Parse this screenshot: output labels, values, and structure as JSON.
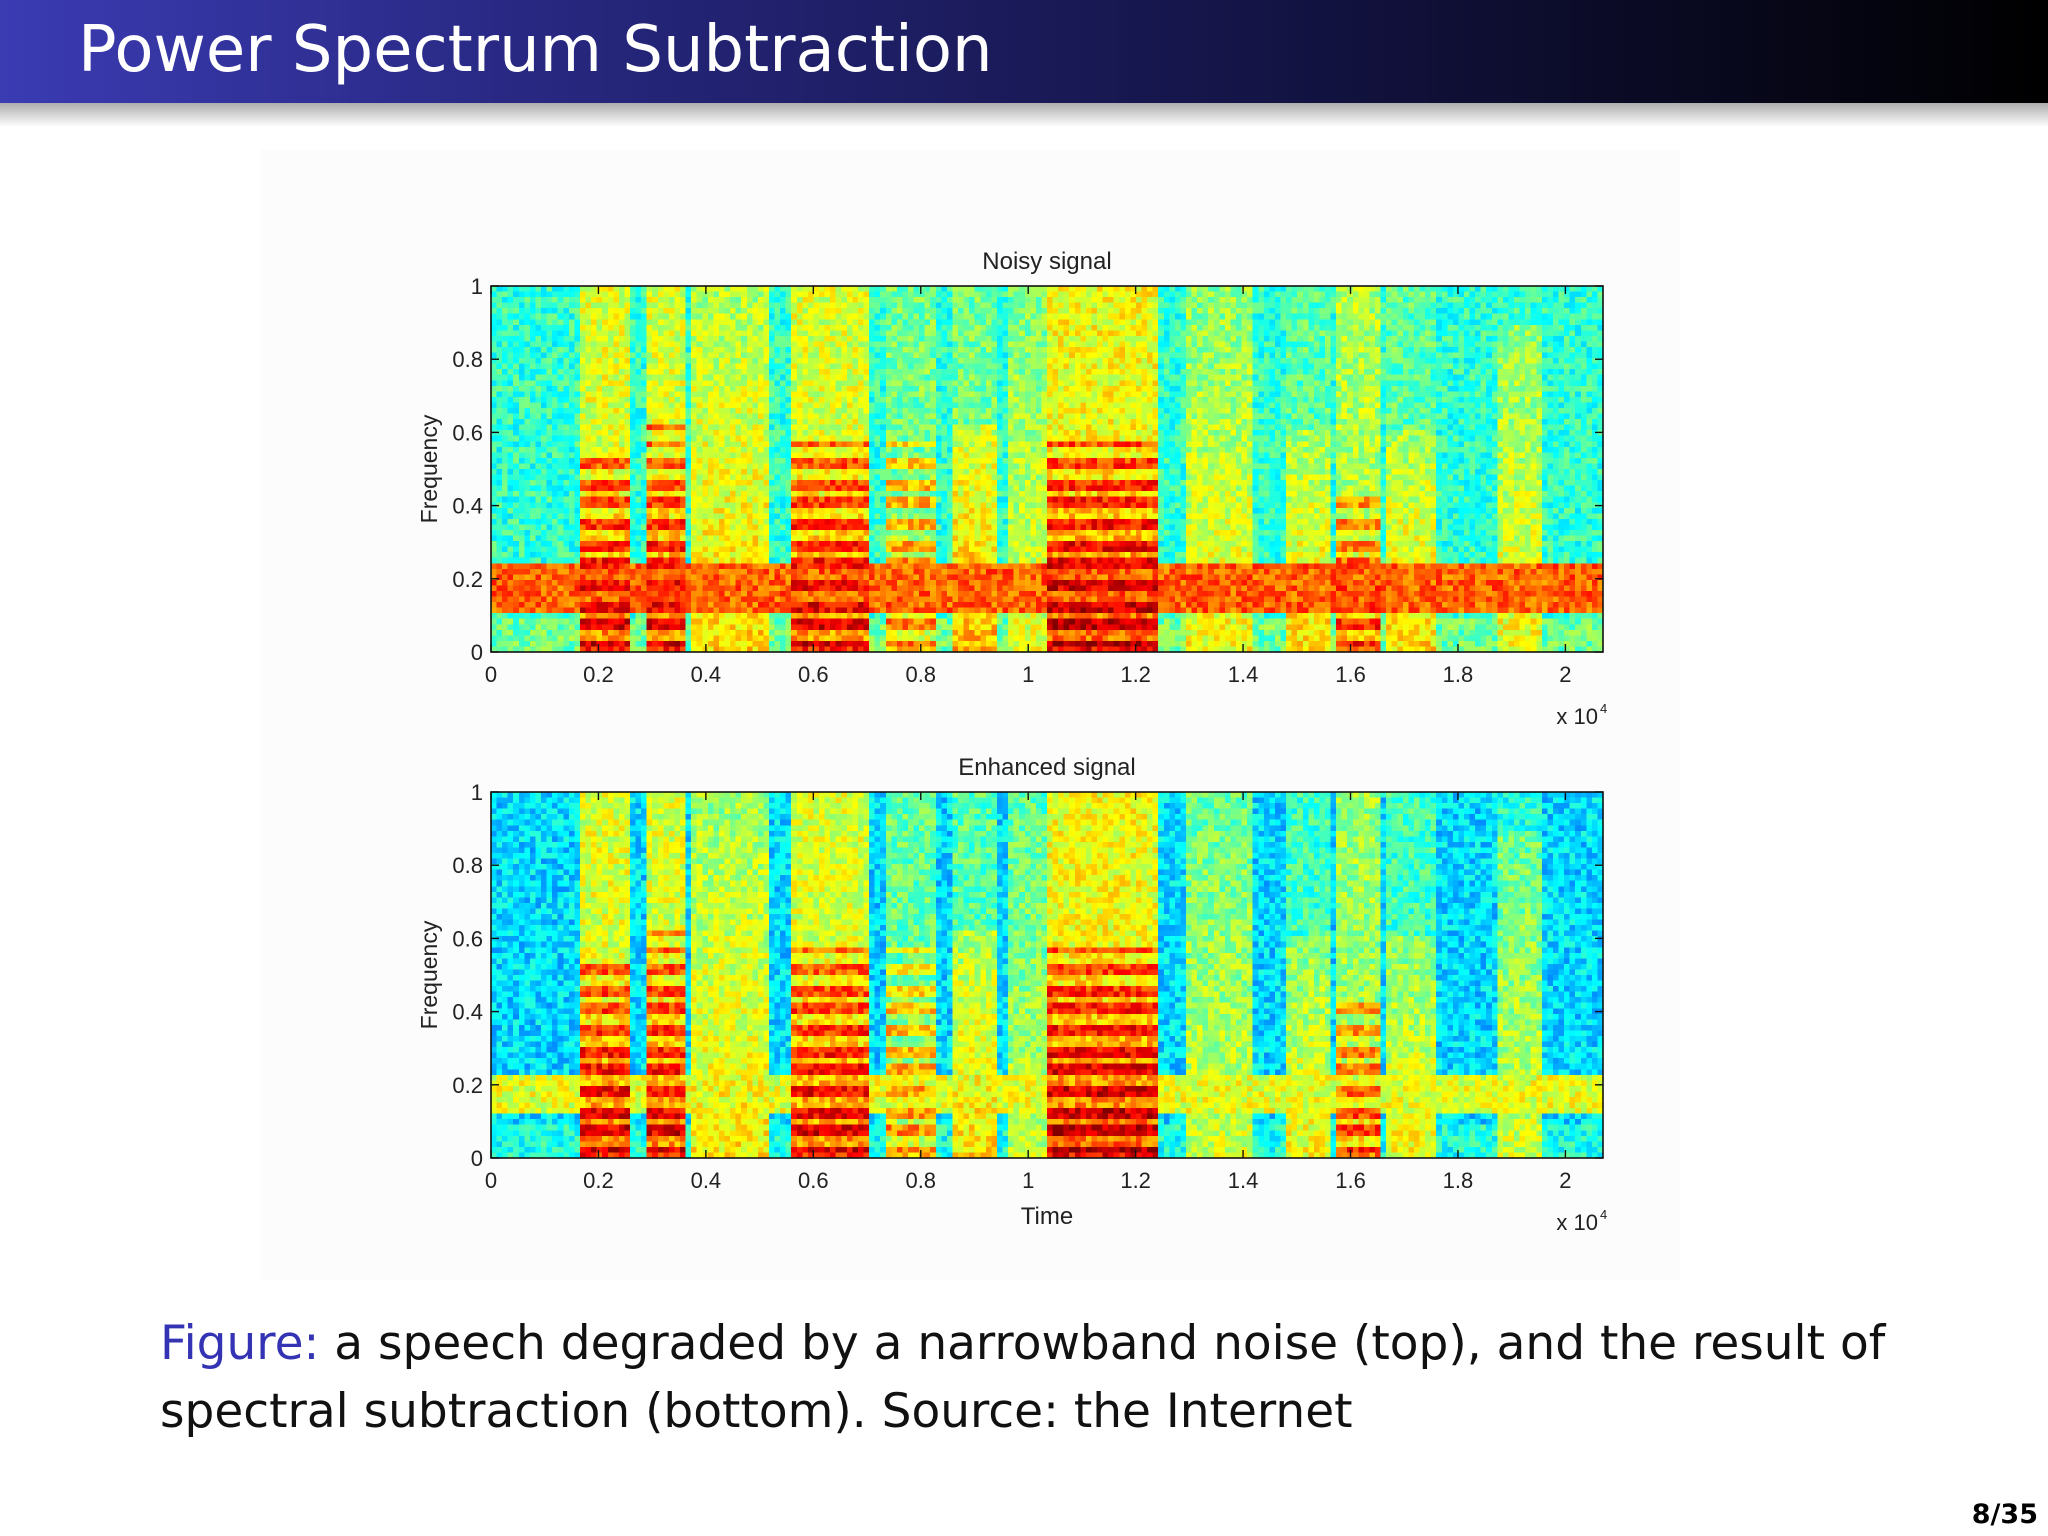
{
  "slide": {
    "title": "Power Spectrum Subtraction",
    "caption_label": "Figure:",
    "caption_text": "a speech degraded by a narrowband noise (top), and the result of spectral subtraction (bottom). Source: the Internet",
    "page_number": "8/35",
    "colors": {
      "title_bar_start": "#3b3bb3",
      "title_bar_end": "#000000",
      "caption_label": "#3333b3"
    }
  },
  "chart_data": [
    {
      "type": "heatmap",
      "title": "Noisy signal",
      "xlabel": "",
      "ylabel": "Frequency",
      "x_ticks": [
        0,
        0.2,
        0.4,
        0.6,
        0.8,
        1,
        1.2,
        1.4,
        1.6,
        1.8,
        2
      ],
      "x_tick_labels": [
        "0",
        "0.2",
        "0.4",
        "0.6",
        "0.8",
        "1",
        "1.2",
        "1.4",
        "1.6",
        "1.8",
        "2"
      ],
      "x_multiplier": "x 10",
      "x_multiplier_exp": "4",
      "y_ticks": [
        0,
        0.2,
        0.4,
        0.6,
        0.8,
        1
      ],
      "y_tick_labels": [
        "0",
        "0.2",
        "0.4",
        "0.6",
        "0.8",
        "1"
      ],
      "xlim": [
        0,
        2.07
      ],
      "ylim": [
        0,
        1
      ],
      "colormap": "jet",
      "noise_band": {
        "freq_low": 0.1,
        "freq_high": 0.24,
        "level": 0.78
      },
      "background_level": 0.42,
      "segments": [
        {
          "t0": 0.17,
          "t1": 0.26,
          "fmax": 0.55,
          "level": 0.85,
          "harmonics": true
        },
        {
          "t0": 0.29,
          "t1": 0.36,
          "fmax": 0.62,
          "level": 0.84,
          "harmonics": true
        },
        {
          "t0": 0.37,
          "t1": 0.52,
          "fmax": 1.0,
          "level": 0.66,
          "harmonics": false
        },
        {
          "t0": 0.56,
          "t1": 0.7,
          "fmax": 0.6,
          "level": 0.84,
          "harmonics": true
        },
        {
          "t0": 0.73,
          "t1": 0.83,
          "fmax": 0.58,
          "level": 0.7,
          "harmonics": true
        },
        {
          "t0": 0.86,
          "t1": 0.94,
          "fmax": 0.62,
          "level": 0.7,
          "harmonics": false
        },
        {
          "t0": 0.96,
          "t1": 1.03,
          "fmax": 1.0,
          "level": 0.6,
          "harmonics": false
        },
        {
          "t0": 1.04,
          "t1": 1.24,
          "fmax": 0.57,
          "level": 0.88,
          "harmonics": true
        },
        {
          "t0": 1.29,
          "t1": 1.42,
          "fmax": 1.0,
          "level": 0.62,
          "harmonics": false
        },
        {
          "t0": 1.48,
          "t1": 1.56,
          "fmax": 0.6,
          "level": 0.66,
          "harmonics": false
        },
        {
          "t0": 1.57,
          "t1": 1.66,
          "fmax": 0.44,
          "level": 0.78,
          "harmonics": true
        },
        {
          "t0": 1.67,
          "t1": 1.76,
          "fmax": 0.6,
          "level": 0.66,
          "harmonics": false
        },
        {
          "t0": 1.87,
          "t1": 1.96,
          "fmax": 0.9,
          "level": 0.62,
          "harmonics": false
        }
      ]
    },
    {
      "type": "heatmap",
      "title": "Enhanced signal",
      "xlabel": "Time",
      "ylabel": "Frequency",
      "x_ticks": [
        0,
        0.2,
        0.4,
        0.6,
        0.8,
        1,
        1.2,
        1.4,
        1.6,
        1.8,
        2
      ],
      "x_tick_labels": [
        "0",
        "0.2",
        "0.4",
        "0.6",
        "0.8",
        "1",
        "1.2",
        "1.4",
        "1.6",
        "1.8",
        "2"
      ],
      "x_multiplier": "x 10",
      "x_multiplier_exp": "4",
      "y_ticks": [
        0,
        0.2,
        0.4,
        0.6,
        0.8,
        1
      ],
      "y_tick_labels": [
        "0",
        "0.2",
        "0.4",
        "0.6",
        "0.8",
        "1"
      ],
      "xlim": [
        0,
        2.07
      ],
      "ylim": [
        0,
        1
      ],
      "colormap": "jet",
      "noise_band": {
        "freq_low": 0.12,
        "freq_high": 0.22,
        "level": 0.6
      },
      "background_level": 0.34,
      "segments": [
        {
          "t0": 0.17,
          "t1": 0.26,
          "fmax": 0.55,
          "level": 0.85,
          "harmonics": true
        },
        {
          "t0": 0.29,
          "t1": 0.36,
          "fmax": 0.62,
          "level": 0.84,
          "harmonics": true
        },
        {
          "t0": 0.37,
          "t1": 0.52,
          "fmax": 1.0,
          "level": 0.64,
          "harmonics": false
        },
        {
          "t0": 0.56,
          "t1": 0.7,
          "fmax": 0.58,
          "level": 0.84,
          "harmonics": true
        },
        {
          "t0": 0.73,
          "t1": 0.83,
          "fmax": 0.58,
          "level": 0.68,
          "harmonics": true
        },
        {
          "t0": 0.86,
          "t1": 0.94,
          "fmax": 0.62,
          "level": 0.66,
          "harmonics": false
        },
        {
          "t0": 0.96,
          "t1": 1.03,
          "fmax": 1.0,
          "level": 0.56,
          "harmonics": false
        },
        {
          "t0": 1.04,
          "t1": 1.24,
          "fmax": 0.57,
          "level": 0.88,
          "harmonics": true
        },
        {
          "t0": 1.29,
          "t1": 1.42,
          "fmax": 1.0,
          "level": 0.58,
          "harmonics": false
        },
        {
          "t0": 1.48,
          "t1": 1.56,
          "fmax": 0.6,
          "level": 0.62,
          "harmonics": false
        },
        {
          "t0": 1.57,
          "t1": 1.66,
          "fmax": 0.42,
          "level": 0.76,
          "harmonics": true
        },
        {
          "t0": 1.67,
          "t1": 1.76,
          "fmax": 0.6,
          "level": 0.62,
          "harmonics": false
        },
        {
          "t0": 1.87,
          "t1": 1.96,
          "fmax": 0.9,
          "level": 0.58,
          "harmonics": false
        }
      ]
    }
  ]
}
